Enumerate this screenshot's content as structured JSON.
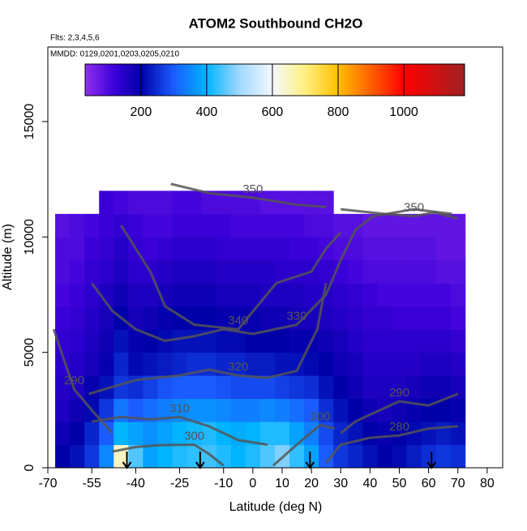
{
  "chart_data": {
    "type": "heatmap",
    "title": "ATOM2 Southbound CH2O",
    "annotations": [
      "Flts: 2,3,4,5,6",
      "MMDD: 0129,0201,0203,0205,0210"
    ],
    "x_label": "Latitude (deg N)",
    "y_label": "Altitude (m)",
    "xlim": [
      -70,
      85.3
    ],
    "xticks": [
      -70,
      -55,
      -40,
      -25,
      -10,
      0,
      10,
      20,
      30,
      40,
      50,
      60,
      70,
      80
    ],
    "ylim": [
      0,
      18230
    ],
    "yticks": [
      0,
      5000,
      10000,
      15000
    ],
    "x": [
      -65,
      -60,
      -55,
      -50,
      -45,
      -40,
      -35,
      -30,
      -25,
      -20,
      -15,
      -10,
      -5,
      0,
      5,
      10,
      15,
      20,
      25,
      30,
      35,
      40,
      45,
      50,
      55,
      60,
      65,
      70
    ],
    "y": [
      500,
      1500,
      2500,
      3500,
      4500,
      5500,
      6500,
      7500,
      8500,
      9500,
      10500,
      11500
    ],
    "z": [
      [
        200,
        220,
        260,
        350,
        650,
        450,
        380,
        400,
        420,
        430,
        440,
        420,
        400,
        420,
        450,
        480,
        430,
        380,
        300,
        260,
        240,
        220,
        200,
        210,
        230,
        250,
        260,
        250
      ],
      [
        180,
        200,
        240,
        300,
        400,
        380,
        360,
        380,
        400,
        410,
        420,
        400,
        390,
        400,
        420,
        420,
        380,
        340,
        280,
        240,
        220,
        200,
        190,
        200,
        210,
        220,
        230,
        220
      ],
      [
        160,
        180,
        210,
        260,
        330,
        300,
        320,
        340,
        350,
        360,
        360,
        350,
        340,
        340,
        350,
        340,
        320,
        300,
        250,
        220,
        200,
        180,
        170,
        180,
        190,
        200,
        200,
        190
      ],
      [
        150,
        160,
        190,
        220,
        260,
        250,
        270,
        290,
        300,
        300,
        300,
        290,
        280,
        280,
        280,
        270,
        260,
        250,
        220,
        200,
        180,
        160,
        160,
        160,
        170,
        180,
        180,
        170
      ],
      [
        140,
        150,
        170,
        190,
        240,
        210,
        220,
        230,
        240,
        250,
        250,
        240,
        240,
        230,
        230,
        220,
        220,
        210,
        200,
        180,
        170,
        150,
        150,
        150,
        150,
        160,
        160,
        150
      ],
      [
        130,
        140,
        160,
        180,
        220,
        190,
        200,
        210,
        220,
        220,
        220,
        210,
        210,
        200,
        200,
        200,
        190,
        190,
        180,
        170,
        150,
        140,
        140,
        140,
        140,
        140,
        140,
        130
      ],
      [
        120,
        130,
        150,
        170,
        200,
        170,
        180,
        190,
        200,
        200,
        200,
        190,
        190,
        190,
        180,
        180,
        170,
        170,
        160,
        150,
        140,
        130,
        130,
        120,
        120,
        120,
        120,
        110
      ],
      [
        110,
        120,
        140,
        160,
        180,
        160,
        160,
        170,
        180,
        180,
        180,
        170,
        170,
        170,
        160,
        160,
        160,
        150,
        150,
        140,
        130,
        120,
        110,
        110,
        110,
        110,
        110,
        100
      ],
      [
        100,
        110,
        130,
        140,
        160,
        140,
        140,
        150,
        160,
        160,
        160,
        150,
        150,
        150,
        150,
        140,
        140,
        140,
        130,
        120,
        110,
        100,
        100,
        100,
        100,
        100,
        90,
        90
      ],
      [
        100,
        100,
        120,
        130,
        150,
        130,
        120,
        130,
        140,
        140,
        140,
        130,
        130,
        130,
        130,
        130,
        120,
        120,
        110,
        100,
        100,
        90,
        90,
        90,
        90,
        90,
        80,
        80
      ],
      [
        90,
        100,
        110,
        120,
        130,
        120,
        110,
        110,
        120,
        120,
        120,
        120,
        110,
        110,
        110,
        110,
        110,
        100,
        100,
        90,
        90,
        80,
        80,
        80,
        80,
        80,
        80,
        80
      ],
      [
        null,
        null,
        null,
        120,
        110,
        100,
        100,
        100,
        110,
        110,
        100,
        100,
        100,
        100,
        90,
        90,
        90,
        90,
        90,
        null,
        null,
        null,
        null,
        null,
        null,
        null,
        null,
        null
      ]
    ],
    "clim": [
      30,
      1185
    ],
    "cticks": [
      200,
      400,
      600,
      800,
      1000
    ],
    "colorscale": [
      [
        30,
        "#8f2ff0"
      ],
      [
        120,
        "#3a00d8"
      ],
      [
        200,
        "#0000a8"
      ],
      [
        300,
        "#1a5cff"
      ],
      [
        400,
        "#00b4ff"
      ],
      [
        500,
        "#a0d8ff"
      ],
      [
        600,
        "#f4f8ff"
      ],
      [
        700,
        "#fff080"
      ],
      [
        800,
        "#ffc000"
      ],
      [
        900,
        "#ff6000"
      ],
      [
        1000,
        "#ff0000"
      ],
      [
        1185,
        "#a02020"
      ]
    ],
    "contour_color": "#555555",
    "contours": [
      {
        "level": 350,
        "x": [
          -28,
          -15,
          0,
          15,
          25
        ],
        "y": [
          12300,
          11900,
          11700,
          11400,
          11300
        ]
      },
      {
        "level": 350,
        "x": [
          30,
          45,
          55,
          62,
          70
        ],
        "y": [
          11200,
          11000,
          10900,
          11060,
          10800
        ]
      },
      {
        "level": 330,
        "x": [
          -55,
          -48,
          -40,
          -30,
          -20,
          -10,
          0,
          15,
          25,
          30,
          35,
          41,
          55,
          68
        ],
        "y": [
          8000,
          6800,
          6000,
          5500,
          5700,
          6000,
          5800,
          6200,
          7500,
          9000,
          10300,
          10900,
          11200,
          11000
        ]
      },
      {
        "level": 340,
        "x": [
          -45,
          -35,
          -30,
          -20,
          -5,
          8,
          20,
          25,
          30
        ],
        "y": [
          10500,
          8500,
          7000,
          6200,
          6000,
          8000,
          8500,
          9500,
          10200
        ]
      },
      {
        "level": 320,
        "x": [
          -56,
          -40,
          -25,
          -15,
          -5,
          5,
          15,
          22,
          25
        ],
        "y": [
          3200,
          3800,
          4000,
          4250,
          4000,
          3900,
          4200,
          6000,
          8000
        ]
      },
      {
        "level": 310,
        "x": [
          -55,
          -45,
          -35,
          -25,
          -15,
          -5,
          5
        ],
        "y": [
          2000,
          2200,
          2100,
          2200,
          1800,
          1200,
          1000
        ]
      },
      {
        "level": 300,
        "x": [
          -48,
          -40,
          -32,
          -20,
          -15,
          -10
        ],
        "y": [
          700,
          900,
          980,
          1000,
          600,
          100
        ]
      },
      {
        "level": 300,
        "x": [
          7,
          15,
          23,
          28
        ],
        "y": [
          100,
          1000,
          1850,
          1700
        ]
      },
      {
        "level": 290,
        "x": [
          -68,
          -64,
          -61,
          -55,
          -48
        ],
        "y": [
          6000,
          4500,
          3400,
          2500,
          1500
        ]
      },
      {
        "level": 290,
        "x": [
          30,
          35,
          40,
          50,
          60,
          70
        ],
        "y": [
          1500,
          2000,
          2300,
          2880,
          2700,
          3200
        ]
      },
      {
        "level": 280,
        "x": [
          25,
          30,
          40,
          50,
          60,
          70
        ],
        "y": [
          200,
          1000,
          1300,
          1400,
          1700,
          1800
        ]
      }
    ],
    "markers_x": [
      -43,
      -18,
      19.5,
      61
    ]
  }
}
